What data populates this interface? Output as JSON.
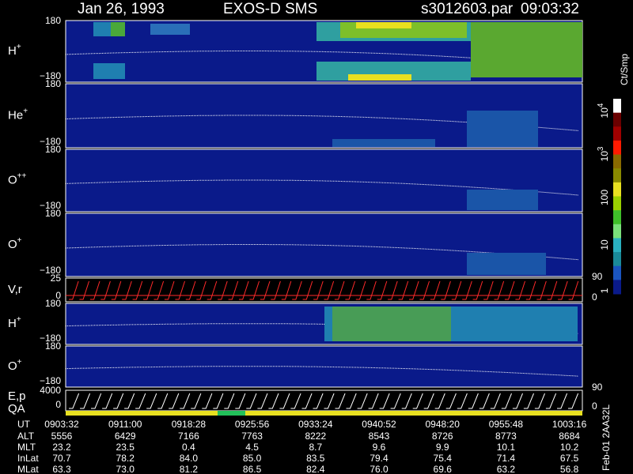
{
  "header": {
    "date": "Jan 26, 1993",
    "instrument": "EXOS-D SMS",
    "file": "s3012603.par",
    "time": "09:03:32"
  },
  "panels": [
    {
      "label": "H",
      "sup": "+",
      "ticks": [
        "180",
        "−180"
      ]
    },
    {
      "label": "He",
      "sup": "+",
      "ticks": [
        "180",
        "−180"
      ]
    },
    {
      "label": "O",
      "sup": "++",
      "ticks": [
        "180",
        "−180"
      ]
    },
    {
      "label": "O",
      "sup": "+",
      "ticks": [
        "180",
        "−180"
      ],
      "right_ticks": [
        "90"
      ]
    },
    {
      "label": "V,r",
      "ticks": [
        "25",
        "0"
      ],
      "right_ticks": [
        "0"
      ]
    },
    {
      "label": "H",
      "sup": "+",
      "ticks": [
        "180",
        "−180"
      ]
    },
    {
      "label": "O",
      "sup": "+",
      "ticks": [
        "180",
        "−180"
      ],
      "right_ticks": [
        "90"
      ]
    },
    {
      "label": "E,p",
      "label2": "QA",
      "ticks": [
        "4000",
        "0"
      ],
      "right_ticks": [
        "0"
      ]
    }
  ],
  "colorbar": {
    "title": "Ct/Smp",
    "labels": [
      {
        "text": "10",
        "sup": "4"
      },
      {
        "text": "10",
        "sup": "3"
      },
      {
        "text": "100"
      },
      {
        "text": "10"
      },
      {
        "text": "1"
      }
    ]
  },
  "table": {
    "rows": [
      {
        "name": "UT",
        "values": [
          "0903:32",
          "0911:00",
          "0918:28",
          "0925:56",
          "0933:24",
          "0940:52",
          "0948:20",
          "0955:48",
          "1003:16"
        ]
      },
      {
        "name": "ALT",
        "values": [
          "5556",
          "6429",
          "7166",
          "7763",
          "8222",
          "8543",
          "8726",
          "8773",
          "8684"
        ]
      },
      {
        "name": "MLT",
        "values": [
          "23.2",
          "23.5",
          "0.4",
          "4.5",
          "8.7",
          "9.6",
          "9.9",
          "10.1",
          "10.2"
        ]
      },
      {
        "name": "InLat",
        "values": [
          "70.7",
          "78.2",
          "84.0",
          "85.0",
          "83.5",
          "79.4",
          "75.4",
          "71.4",
          "67.5"
        ]
      },
      {
        "name": "MLat",
        "values": [
          "63.3",
          "73.0",
          "81.2",
          "86.5",
          "82.4",
          "76.0",
          "69.6",
          "63.2",
          "56.8"
        ]
      }
    ]
  },
  "footer": {
    "id": "Feb-01 2AA32L"
  }
}
